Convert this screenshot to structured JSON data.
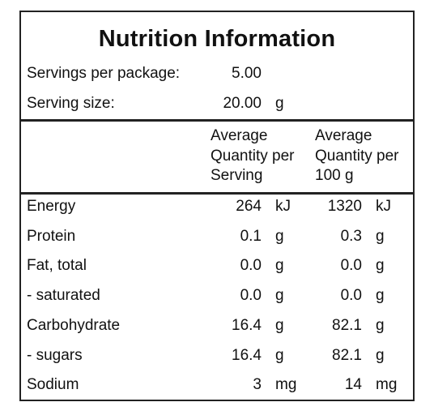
{
  "panel": {
    "title": "Nutrition Information",
    "servings_label": "Servings per package:",
    "servings_value": "5.00",
    "serving_size_label": "Serving size:",
    "serving_size_value": "20.00",
    "serving_size_unit": "g"
  },
  "columns": {
    "per_serving": [
      "Average",
      "Quantity per",
      "Serving"
    ],
    "per_100g": [
      "Average",
      "Quantity per",
      "100 g"
    ]
  },
  "rows": [
    {
      "label": "Energy",
      "serving": "264",
      "serving_unit": "kJ",
      "per100": "1320",
      "per100_unit": "kJ"
    },
    {
      "label": "Protein",
      "serving": "0.1",
      "serving_unit": "g",
      "per100": "0.3",
      "per100_unit": "g"
    },
    {
      "label": "Fat, total",
      "serving": "0.0",
      "serving_unit": "g",
      "per100": "0.0",
      "per100_unit": "g"
    },
    {
      "label": "- saturated",
      "serving": "0.0",
      "serving_unit": "g",
      "per100": "0.0",
      "per100_unit": "g"
    },
    {
      "label": "Carbohydrate",
      "serving": "16.4",
      "serving_unit": "g",
      "per100": "82.1",
      "per100_unit": "g"
    },
    {
      "label": "- sugars",
      "serving": "16.4",
      "serving_unit": "g",
      "per100": "82.1",
      "per100_unit": "g"
    },
    {
      "label": "Sodium",
      "serving": "3",
      "serving_unit": "mg",
      "per100": "14",
      "per100_unit": "mg"
    }
  ]
}
